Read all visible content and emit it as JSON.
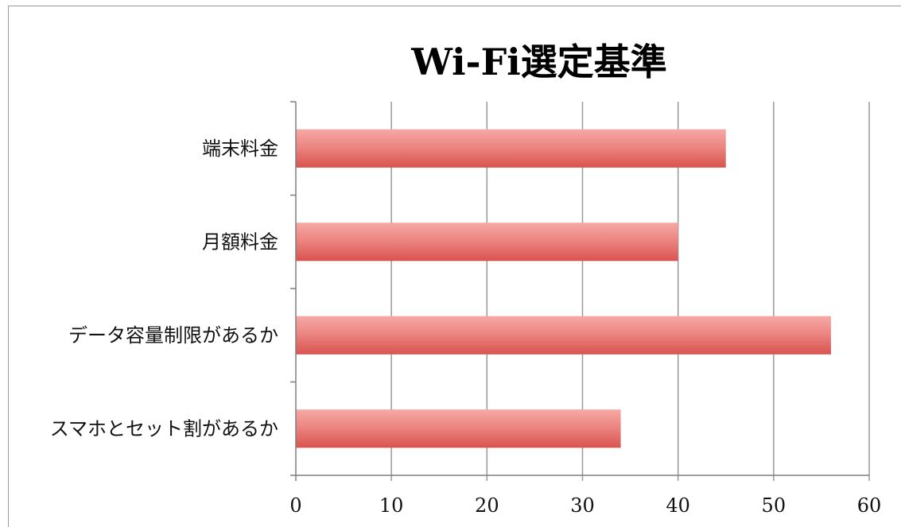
{
  "chart_data": {
    "type": "bar",
    "orientation": "horizontal",
    "title": "Wi-Fi選定基準",
    "xlabel": "",
    "ylabel": "",
    "categories": [
      "端末料金",
      "月額料金",
      "データ容量制限があるか",
      "スマホとセット割があるか"
    ],
    "values": [
      45,
      40,
      56,
      34
    ],
    "xlim": [
      0,
      60
    ],
    "x_ticks": [
      0,
      10,
      20,
      30,
      40,
      50,
      60
    ],
    "grid": "vertical",
    "legend": "none",
    "colors": {
      "bar_top": "#f6a9a6",
      "bar_bottom": "#d9534f",
      "grid": "#9a9a9a",
      "axis": "#7f7f7f"
    }
  }
}
